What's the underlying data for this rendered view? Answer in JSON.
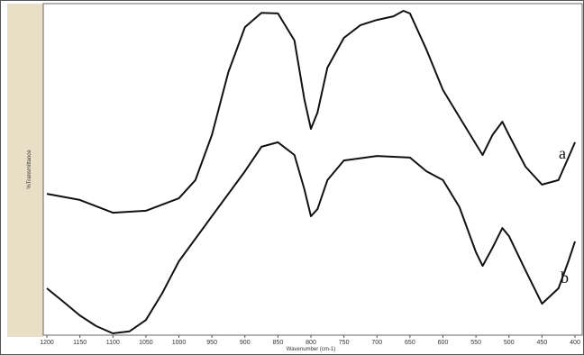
{
  "chart_data": {
    "type": "line",
    "y_label": "%Transmittance",
    "x_label": "Wavenumber (cm-1)",
    "xlim": [
      1200,
      400
    ],
    "ylim": [
      0,
      100
    ],
    "xticks": [
      1200,
      1150,
      1100,
      1050,
      1000,
      950,
      900,
      850,
      800,
      750,
      700,
      650,
      600,
      550,
      500,
      450,
      400
    ],
    "series": [
      {
        "name": "a",
        "color": "#111111",
        "x": [
          1200,
          1150,
          1100,
          1050,
          1000,
          975,
          950,
          925,
          900,
          875,
          850,
          825,
          810,
          800,
          790,
          775,
          750,
          725,
          700,
          675,
          660,
          650,
          625,
          600,
          575,
          550,
          540,
          525,
          510,
          500,
          475,
          450,
          425,
          410,
          400
        ],
        "values": [
          42.8,
          40.9,
          37.0,
          37.6,
          41.4,
          47.0,
          60.8,
          80.1,
          93.9,
          98.3,
          98.1,
          89.8,
          71.8,
          62.7,
          67.7,
          81.5,
          90.6,
          94.5,
          96.1,
          97.2,
          98.9,
          98.1,
          87.0,
          74.6,
          66.3,
          58.0,
          54.7,
          60.8,
          64.9,
          60.8,
          51.1,
          45.6,
          47.0,
          53.9,
          58.6
        ]
      },
      {
        "name": "b",
        "color": "#111111",
        "x": [
          1200,
          1175,
          1150,
          1125,
          1100,
          1075,
          1050,
          1025,
          1000,
          950,
          900,
          875,
          850,
          825,
          810,
          800,
          790,
          775,
          750,
          700,
          650,
          625,
          600,
          575,
          550,
          540,
          525,
          510,
          500,
          475,
          450,
          425,
          410,
          400
        ],
        "values": [
          13.8,
          9.7,
          5.5,
          2.2,
          0,
          0.6,
          4.1,
          12.4,
          22.1,
          35.9,
          49.7,
          57.2,
          58.6,
          54.7,
          44.2,
          35.9,
          38.1,
          47.0,
          53.0,
          54.4,
          53.9,
          49.7,
          47.0,
          38.7,
          24.9,
          20.7,
          26.2,
          32.3,
          29.8,
          19.3,
          9.1,
          13.8,
          22.1,
          28.2
        ]
      }
    ]
  }
}
